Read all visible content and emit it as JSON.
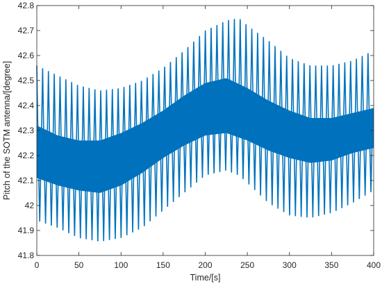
{
  "chart_data": {
    "type": "line",
    "title": "",
    "xlabel": "Time/[s]",
    "ylabel": "Pitch of the SOTM antenna/[degree]",
    "xlim": [
      0,
      400
    ],
    "ylim": [
      41.8,
      42.8
    ],
    "xticks": [
      0,
      50,
      100,
      150,
      200,
      250,
      300,
      350,
      400
    ],
    "xtick_labels": [
      "0",
      "50",
      "100",
      "150",
      "200",
      "250",
      "300",
      "350",
      "400"
    ],
    "yticks": [
      41.8,
      41.9,
      42.0,
      42.1,
      42.2,
      42.3,
      42.4,
      42.5,
      42.6,
      42.7,
      42.8
    ],
    "ytick_labels": [
      "41.8",
      "41.9",
      "42",
      "42.1",
      "42.2",
      "42.3",
      "42.4",
      "42.5",
      "42.6",
      "42.7",
      "42.8"
    ],
    "grid": false,
    "legend": "none",
    "line_color": "#0072BD",
    "series": [
      {
        "name": "",
        "oscillation_period_s": 6.9,
        "dense_band": {
          "x": [
            0,
            25,
            50,
            75,
            100,
            125,
            150,
            175,
            200,
            225,
            250,
            275,
            300,
            325,
            350,
            375,
            400
          ],
          "lower": [
            42.11,
            42.08,
            42.06,
            42.05,
            42.08,
            42.13,
            42.19,
            42.24,
            42.28,
            42.29,
            42.26,
            42.22,
            42.19,
            42.17,
            42.18,
            42.21,
            42.23
          ],
          "upper": [
            42.32,
            42.28,
            42.26,
            42.26,
            42.29,
            42.33,
            42.38,
            42.44,
            42.49,
            42.51,
            42.47,
            42.42,
            42.38,
            42.35,
            42.35,
            42.37,
            42.39
          ]
        },
        "peak_envelope": {
          "x": [
            0,
            25,
            50,
            75,
            100,
            125,
            150,
            175,
            200,
            225,
            240,
            250,
            275,
            300,
            325,
            350,
            375,
            400
          ],
          "lower": [
            41.94,
            41.91,
            41.87,
            41.855,
            41.87,
            41.91,
            41.98,
            42.05,
            42.12,
            42.14,
            42.12,
            42.09,
            42.01,
            41.96,
            41.95,
            41.97,
            42.01,
            42.06
          ],
          "upper": [
            42.56,
            42.52,
            42.48,
            42.46,
            42.47,
            42.5,
            42.55,
            42.62,
            42.7,
            42.74,
            42.75,
            42.72,
            42.66,
            42.59,
            42.56,
            42.56,
            42.58,
            42.62
          ]
        }
      }
    ]
  }
}
